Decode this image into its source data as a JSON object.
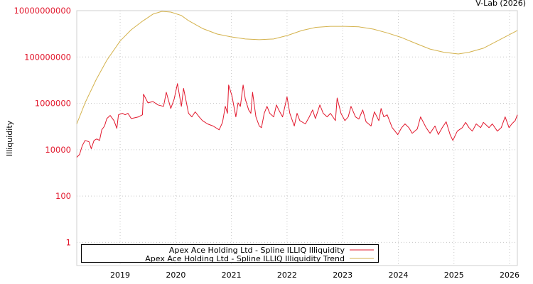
{
  "credit": "V-Lab (2026)",
  "chart_data": {
    "type": "line",
    "title": "",
    "xlabel": "",
    "ylabel": "Illiquidity",
    "yscale": "log",
    "ylim": [
      0.1,
      10000000000
    ],
    "xlim": [
      2018.22,
      2026.14
    ],
    "grid": true,
    "legend_position": "bottom-left",
    "y_ticks": [
      1,
      100,
      10000,
      1000000,
      100000000,
      10000000000
    ],
    "y_tick_labels": [
      "1",
      "100",
      "10000",
      "1000000",
      "100000000",
      "10000000000"
    ],
    "x_ticks": [
      2019,
      2020,
      2021,
      2022,
      2023,
      2024,
      2025,
      2026
    ],
    "x_tick_labels": [
      "2019",
      "2020",
      "2021",
      "2022",
      "2023",
      "2024",
      "2025",
      "2026"
    ],
    "tick_color": "#e2182d",
    "series": [
      {
        "name": "Apex Ace Holding Ltd - Spline ILLIQ Illiquidity",
        "color": "#e2182d",
        "x": [
          2018.22,
          2018.27,
          2018.32,
          2018.37,
          2018.44,
          2018.48,
          2018.53,
          2018.58,
          2018.63,
          2018.67,
          2018.72,
          2018.76,
          2018.82,
          2018.89,
          2018.94,
          2018.97,
          2019.04,
          2019.09,
          2019.14,
          2019.2,
          2019.33,
          2019.4,
          2019.42,
          2019.5,
          2019.59,
          2019.68,
          2019.78,
          2019.83,
          2019.91,
          2019.97,
          2020.03,
          2020.1,
          2020.14,
          2020.23,
          2020.29,
          2020.35,
          2020.42,
          2020.48,
          2020.57,
          2020.67,
          2020.78,
          2020.84,
          2020.89,
          2020.93,
          2020.95,
          2021.01,
          2021.08,
          2021.12,
          2021.16,
          2021.21,
          2021.25,
          2021.31,
          2021.35,
          2021.38,
          2021.44,
          2021.5,
          2021.54,
          2021.59,
          2021.64,
          2021.69,
          2021.76,
          2021.81,
          2021.85,
          2021.92,
          2022.0,
          2022.05,
          2022.13,
          2022.18,
          2022.23,
          2022.33,
          2022.4,
          2022.46,
          2022.51,
          2022.59,
          2022.65,
          2022.72,
          2022.78,
          2022.87,
          2022.9,
          2022.97,
          2023.04,
          2023.1,
          2023.15,
          2023.23,
          2023.29,
          2023.36,
          2023.42,
          2023.51,
          2023.57,
          2023.65,
          2023.69,
          2023.74,
          2023.8,
          2023.89,
          2023.99,
          2024.06,
          2024.12,
          2024.19,
          2024.25,
          2024.34,
          2024.4,
          2024.5,
          2024.57,
          2024.66,
          2024.72,
          2024.79,
          2024.86,
          2024.93,
          2024.98,
          2025.06,
          2025.15,
          2025.21,
          2025.27,
          2025.33,
          2025.4,
          2025.48,
          2025.53,
          2025.63,
          2025.69,
          2025.78,
          2025.85,
          2025.92,
          2025.99,
          2026.04,
          2026.1,
          2026.14
        ],
        "y": [
          4700.0,
          6200.0,
          15000.0,
          25000.0,
          22000.0,
          11000.0,
          25000.0,
          29000.0,
          25000.0,
          72000.0,
          105000.0,
          220000.0,
          300000.0,
          180000.0,
          83000.0,
          320000.0,
          370000.0,
          320000.0,
          370000.0,
          220000.0,
          260000.0,
          320000.0,
          2500000.0,
          1050000.0,
          1200000.0,
          850000.0,
          740000.0,
          3000000.0,
          600000.0,
          1500000.0,
          7100000.0,
          740000.0,
          4400000.0,
          370000.0,
          260000.0,
          430000.0,
          260000.0,
          180000.0,
          130000.0,
          105000.0,
          72000.0,
          150000.0,
          740000.0,
          370000.0,
          6200000.0,
          2100000.0,
          260000.0,
          1050000.0,
          740000.0,
          6200000.0,
          1500000.0,
          520000.0,
          370000.0,
          3000000.0,
          260000.0,
          105000.0,
          89000.0,
          370000.0,
          740000.0,
          370000.0,
          260000.0,
          850000.0,
          520000.0,
          260000.0,
          1900000.0,
          370000.0,
          105000.0,
          370000.0,
          180000.0,
          130000.0,
          260000.0,
          520000.0,
          220000.0,
          850000.0,
          370000.0,
          260000.0,
          370000.0,
          180000.0,
          1700000.0,
          370000.0,
          180000.0,
          260000.0,
          740000.0,
          260000.0,
          210000.0,
          520000.0,
          160000.0,
          105000.0,
          430000.0,
          180000.0,
          600000.0,
          260000.0,
          320000.0,
          89000.0,
          45000.0,
          89000.0,
          130000.0,
          89000.0,
          51000.0,
          78000.0,
          260000.0,
          89000.0,
          51000.0,
          105000.0,
          45000.0,
          89000.0,
          160000.0,
          45000.0,
          25000.0,
          63000.0,
          89000.0,
          150000.0,
          89000.0,
          63000.0,
          130000.0,
          89000.0,
          150000.0,
          89000.0,
          130000.0,
          63000.0,
          89000.0,
          260000.0,
          89000.0,
          130000.0,
          180000.0,
          320000.0
        ]
      },
      {
        "name": "Apex Ace Holding Ltd - Spline ILLIQ Illiquidity Trend",
        "color": "#d4b24c",
        "x": [
          2018.22,
          2018.37,
          2018.57,
          2018.76,
          2019.0,
          2019.2,
          2019.4,
          2019.59,
          2019.75,
          2019.91,
          2020.1,
          2020.23,
          2020.48,
          2020.74,
          2020.99,
          2021.25,
          2021.5,
          2021.76,
          2022.01,
          2022.27,
          2022.52,
          2022.78,
          2023.04,
          2023.29,
          2023.55,
          2023.8,
          2024.06,
          2024.31,
          2024.57,
          2024.82,
          2025.08,
          2025.27,
          2025.53,
          2025.78,
          2025.97,
          2026.14
        ],
        "y": [
          130000.0,
          1050000.0,
          10700000.0,
          72000000.0,
          490000000.0,
          1500000000.0,
          3500000000.0,
          7100000000.0,
          9300000000.0,
          8700000000.0,
          6200000000.0,
          3700000000.0,
          1700000000.0,
          980000000.0,
          740000000.0,
          600000000.0,
          560000000.0,
          600000000.0,
          850000000.0,
          1400000000.0,
          1900000000.0,
          2100000000.0,
          2100000000.0,
          2000000000.0,
          1600000000.0,
          1100000000.0,
          690000000.0,
          390000000.0,
          220000000.0,
          160000000.0,
          135000000.0,
          160000000.0,
          240000000.0,
          490000000.0,
          850000000.0,
          1400000000.0
        ]
      }
    ]
  }
}
